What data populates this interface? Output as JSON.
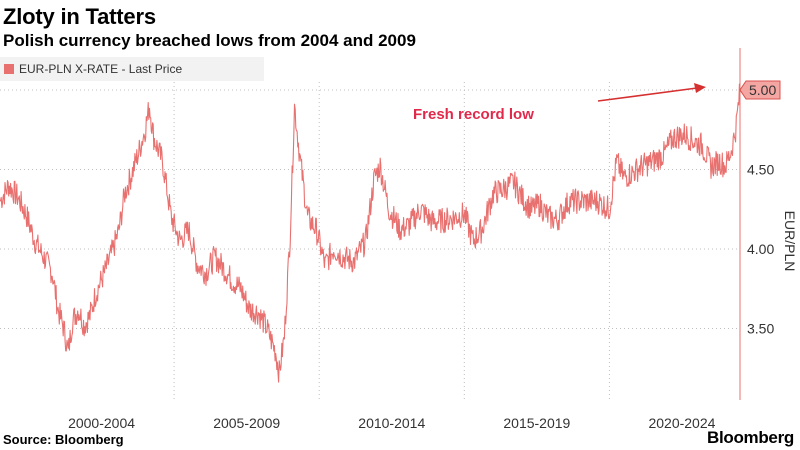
{
  "chart_data": {
    "type": "line",
    "title": "Zloty in Tatters",
    "subtitle": "Polish currency breached lows from 2004 and 2009",
    "series": [
      {
        "name": "EUR-PLN X-RATE - Last Price",
        "color": "#e8716f",
        "points": [
          [
            1999.0,
            4.3
          ],
          [
            1999.3,
            4.4
          ],
          [
            1999.6,
            4.33
          ],
          [
            1999.9,
            4.22
          ],
          [
            2000.2,
            4.05
          ],
          [
            2000.5,
            3.95
          ],
          [
            2000.8,
            3.85
          ],
          [
            2001.0,
            3.62
          ],
          [
            2001.2,
            3.5
          ],
          [
            2001.35,
            3.35
          ],
          [
            2001.5,
            3.55
          ],
          [
            2001.7,
            3.62
          ],
          [
            2001.9,
            3.52
          ],
          [
            2002.1,
            3.58
          ],
          [
            2002.3,
            3.72
          ],
          [
            2002.6,
            3.85
          ],
          [
            2002.9,
            4.0
          ],
          [
            2003.1,
            4.12
          ],
          [
            2003.3,
            4.35
          ],
          [
            2003.5,
            4.45
          ],
          [
            2003.8,
            4.62
          ],
          [
            2004.0,
            4.75
          ],
          [
            2004.15,
            4.9
          ],
          [
            2004.3,
            4.7
          ],
          [
            2004.6,
            4.55
          ],
          [
            2004.9,
            4.2
          ],
          [
            2005.2,
            4.05
          ],
          [
            2005.5,
            4.12
          ],
          [
            2005.8,
            3.9
          ],
          [
            2006.1,
            3.85
          ],
          [
            2006.4,
            3.95
          ],
          [
            2006.7,
            3.88
          ],
          [
            2007.0,
            3.8
          ],
          [
            2007.3,
            3.75
          ],
          [
            2007.6,
            3.62
          ],
          [
            2007.9,
            3.6
          ],
          [
            2008.2,
            3.5
          ],
          [
            2008.5,
            3.35
          ],
          [
            2008.62,
            3.22
          ],
          [
            2008.8,
            3.45
          ],
          [
            2009.0,
            4.1
          ],
          [
            2009.15,
            4.9
          ],
          [
            2009.35,
            4.55
          ],
          [
            2009.6,
            4.2
          ],
          [
            2009.9,
            4.12
          ],
          [
            2010.2,
            3.9
          ],
          [
            2010.5,
            4.0
          ],
          [
            2010.8,
            3.95
          ],
          [
            2011.2,
            3.92
          ],
          [
            2011.6,
            4.05
          ],
          [
            2011.9,
            4.45
          ],
          [
            2012.1,
            4.52
          ],
          [
            2012.4,
            4.25
          ],
          [
            2012.8,
            4.12
          ],
          [
            2013.1,
            4.15
          ],
          [
            2013.5,
            4.25
          ],
          [
            2013.9,
            4.17
          ],
          [
            2014.3,
            4.18
          ],
          [
            2014.7,
            4.2
          ],
          [
            2015.0,
            4.22
          ],
          [
            2015.3,
            4.05
          ],
          [
            2015.6,
            4.12
          ],
          [
            2016.0,
            4.35
          ],
          [
            2016.4,
            4.38
          ],
          [
            2016.7,
            4.42
          ],
          [
            2017.0,
            4.32
          ],
          [
            2017.3,
            4.25
          ],
          [
            2017.6,
            4.28
          ],
          [
            2017.9,
            4.2
          ],
          [
            2018.2,
            4.18
          ],
          [
            2018.6,
            4.3
          ],
          [
            2018.9,
            4.3
          ],
          [
            2019.2,
            4.3
          ],
          [
            2019.6,
            4.3
          ],
          [
            2020.0,
            4.25
          ],
          [
            2020.25,
            4.55
          ],
          [
            2020.5,
            4.45
          ],
          [
            2020.8,
            4.48
          ],
          [
            2021.1,
            4.52
          ],
          [
            2021.5,
            4.55
          ],
          [
            2021.9,
            4.6
          ],
          [
            2022.2,
            4.7
          ],
          [
            2022.6,
            4.72
          ],
          [
            2022.9,
            4.68
          ],
          [
            2023.2,
            4.65
          ],
          [
            2023.5,
            4.52
          ],
          [
            2023.8,
            4.55
          ],
          [
            2024.0,
            4.52
          ],
          [
            2024.2,
            4.62
          ],
          [
            2024.35,
            4.75
          ],
          [
            2024.5,
            5.0
          ]
        ]
      }
    ],
    "xlim": [
      1999.0,
      2024.5
    ],
    "ylim": [
      3.05,
      5.05
    ],
    "x_tick_labels": [
      "2000-2004",
      "2005-2009",
      "2010-2014",
      "2015-2019",
      "2020-2024"
    ],
    "x_tick_centers": [
      2002.5,
      2007.5,
      2012.5,
      2017.5,
      2022.5
    ],
    "y_ticks": [
      3.5,
      4.0,
      4.5
    ],
    "y_tick_labels": [
      "3.50",
      "4.00",
      "4.50"
    ],
    "ylabel": "EUR/PLN",
    "last_value": 5.0,
    "last_value_label": "5.00",
    "annotation": {
      "text": "Fresh record low",
      "color": "#e0294b",
      "arrow_color": "#d63031"
    },
    "grid": true,
    "legend_position": "top-left",
    "source": "Source: Bloomberg",
    "brand": "Bloomberg"
  }
}
